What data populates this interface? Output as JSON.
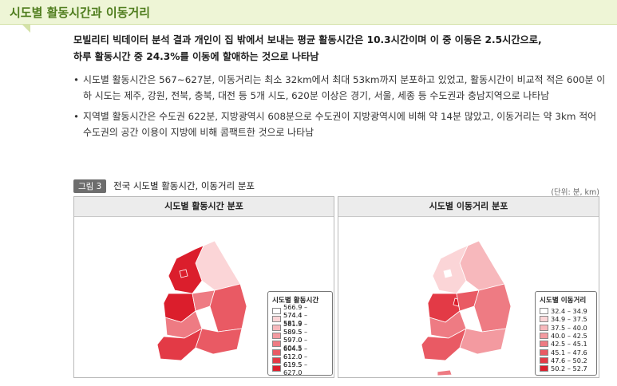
{
  "header": {
    "title": "시도별 활동시간과 이동거리"
  },
  "summary": {
    "line1": "모빌리티 빅데이터 분석 결과 개인이 집 밖에서 보내는 평균 활동시간은 10.3시간이며 이 중 이동은 2.5시간으로,",
    "line2": "하루 활동시간 중 24.3%를 이동에 할애하는 것으로 나타남"
  },
  "bullets": [
    {
      "bullet": "•",
      "text": "시도별 활동시간은 567~627분, 이동거리는 최소 32km에서 최대 53km까지 분포하고 있었고, 활동시간이 비교적 적은 600분 이하 시도는 제주, 강원, 전북, 충북, 대전 등 5개 시도, 620분 이상은 경기, 서울, 세종 등 수도권과 충남지역으로 나타남"
    },
    {
      "bullet": "•",
      "text": "지역별 활동시간은 수도권 622분, 지방광역시 608분으로 수도권이 지방광역시에 비해 약 14분 많았고, 이동거리는 약 3km 적어 수도권의 공간 이용이 지방에 비해 콤팩트한 것으로 나타남"
    }
  ],
  "figure": {
    "tag": "그림 3",
    "title": "전국 시도별 활동시간, 이동거리 분포",
    "unit": "(단위: 분, km)"
  },
  "left_map": {
    "title": "시도별 활동시간 분포",
    "legend_title": "시도별 활동시간",
    "legend": [
      {
        "label": "566.9 – 574.4",
        "color": "#ffffff"
      },
      {
        "label": "574.4 – 581.9",
        "color": "#fbd5d7"
      },
      {
        "label": "581.9 – 589.5",
        "color": "#f7b8bc"
      },
      {
        "label": "589.5 – 597.0",
        "color": "#f39aa0"
      },
      {
        "label": "597.0 – 604.5",
        "color": "#ee7b83"
      },
      {
        "label": "604.5 – 612.0",
        "color": "#e95a64"
      },
      {
        "label": "612.0 – 619.5",
        "color": "#e33a46"
      },
      {
        "label": "619.5 – 627.0",
        "color": "#db1e2c"
      }
    ]
  },
  "right_map": {
    "title": "시도별 이동거리 분포",
    "legend_title": "시도별 이동거리",
    "legend": [
      {
        "label": "32.4 – 34.9",
        "color": "#ffffff"
      },
      {
        "label": "34.9 – 37.5",
        "color": "#fbd5d7"
      },
      {
        "label": "37.5 – 40.0",
        "color": "#f7b8bc"
      },
      {
        "label": "40.0 – 42.5",
        "color": "#f39aa0"
      },
      {
        "label": "42.5 – 45.1",
        "color": "#ee7b83"
      },
      {
        "label": "45.1 – 47.6",
        "color": "#e95a64"
      },
      {
        "label": "47.6 – 50.2",
        "color": "#e33a46"
      },
      {
        "label": "50.2 – 52.7",
        "color": "#db1e2c"
      }
    ]
  }
}
